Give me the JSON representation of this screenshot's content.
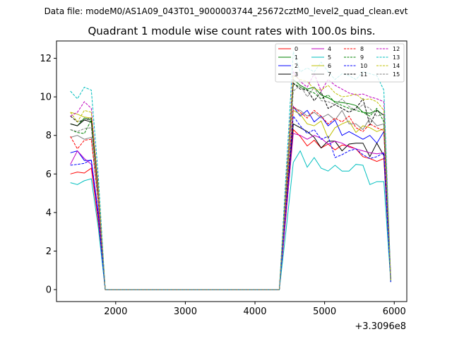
{
  "chart_data": {
    "type": "line",
    "suptitle": "Data file: modeM0/AS1A09_043T01_9000003744_25672cztM0_level2_quad_clean.evt",
    "title": "Quadrant 1 module wise count rates with 100.0s bins.",
    "xlabel": "",
    "ylabel": "",
    "x_offset_label": "+3.3096e8",
    "xlim": [
      1150,
      6180
    ],
    "ylim": [
      -0.62,
      12.9
    ],
    "xticks": [
      2000,
      3000,
      4000,
      5000,
      6000
    ],
    "xtick_labels": [
      "2000",
      "3000",
      "4000",
      "5000",
      "6000"
    ],
    "yticks": [
      0,
      2,
      4,
      6,
      8,
      10,
      12
    ],
    "ytick_labels": [
      "0",
      "2",
      "4",
      "6",
      "8",
      "10",
      "12"
    ],
    "legend_location": "top-right",
    "x": [
      1350,
      1450,
      1550,
      1650,
      1750,
      1850,
      1950,
      2050,
      2150,
      2250,
      2350,
      2450,
      2550,
      2650,
      2750,
      2850,
      2950,
      3050,
      3150,
      3250,
      3350,
      3450,
      3550,
      3650,
      3750,
      3850,
      3950,
      4050,
      4150,
      4250,
      4350,
      4450,
      4550,
      4650,
      4750,
      4850,
      4950,
      5050,
      5150,
      5250,
      5350,
      5450,
      5550,
      5650,
      5750,
      5850,
      5950
    ],
    "series": [
      {
        "name": "0",
        "color": "#ff0000",
        "dash": "solid",
        "values": [
          6.0,
          6.1,
          6.05,
          6.3,
          3.5,
          0.0,
          0.0,
          0.0,
          0.0,
          0.0,
          0.0,
          0.0,
          0.0,
          0.0,
          0.0,
          0.0,
          0.0,
          0.0,
          0.0,
          0.0,
          0.0,
          0.0,
          0.0,
          0.0,
          0.0,
          0.0,
          0.0,
          0.0,
          0.0,
          0.0,
          0.0,
          4.0,
          8.3,
          7.95,
          7.45,
          7.75,
          7.35,
          7.55,
          7.25,
          7.5,
          7.45,
          7.3,
          6.9,
          6.8,
          6.65,
          6.8,
          0.5
        ]
      },
      {
        "name": "1",
        "color": "#008000",
        "dash": "solid",
        "values": [
          8.6,
          8.5,
          8.9,
          8.8,
          5.0,
          0.0,
          0.0,
          0.0,
          0.0,
          0.0,
          0.0,
          0.0,
          0.0,
          0.0,
          0.0,
          0.0,
          0.0,
          0.0,
          0.0,
          0.0,
          0.0,
          0.0,
          0.0,
          0.0,
          0.0,
          0.0,
          0.0,
          0.0,
          0.0,
          0.0,
          0.0,
          5.2,
          10.9,
          10.6,
          10.4,
          10.5,
          10.1,
          9.95,
          9.75,
          9.7,
          9.65,
          9.55,
          9.2,
          9.15,
          9.3,
          9.05,
          0.5
        ]
      },
      {
        "name": "2",
        "color": "#0000ff",
        "dash": "solid",
        "values": [
          7.1,
          7.2,
          6.7,
          6.7,
          4.0,
          0.0,
          0.0,
          0.0,
          0.0,
          0.0,
          0.0,
          0.0,
          0.0,
          0.0,
          0.0,
          0.0,
          0.0,
          0.0,
          0.0,
          0.0,
          0.0,
          0.0,
          0.0,
          0.0,
          0.0,
          0.0,
          0.0,
          0.0,
          0.0,
          0.0,
          0.0,
          4.5,
          9.5,
          9.0,
          9.3,
          8.7,
          9.0,
          8.5,
          8.8,
          8.0,
          8.2,
          8.0,
          7.8,
          8.0,
          7.6,
          8.2,
          0.5
        ]
      },
      {
        "name": "3",
        "color": "#000000",
        "dash": "solid",
        "values": [
          8.6,
          8.5,
          8.8,
          8.7,
          5.0,
          0.0,
          0.0,
          0.0,
          0.0,
          0.0,
          0.0,
          0.0,
          0.0,
          0.0,
          0.0,
          0.0,
          0.0,
          0.0,
          0.0,
          0.0,
          0.0,
          0.0,
          0.0,
          0.0,
          0.0,
          0.0,
          0.0,
          0.0,
          0.0,
          0.0,
          0.0,
          4.3,
          8.6,
          8.4,
          8.2,
          7.9,
          7.35,
          7.7,
          7.7,
          7.2,
          7.55,
          7.6,
          7.6,
          6.9,
          7.6,
          6.95,
          0.4
        ]
      },
      {
        "name": "4",
        "color": "#bf00bf",
        "dash": "solid",
        "values": [
          6.5,
          7.2,
          6.8,
          6.5,
          3.8,
          0.0,
          0.0,
          0.0,
          0.0,
          0.0,
          0.0,
          0.0,
          0.0,
          0.0,
          0.0,
          0.0,
          0.0,
          0.0,
          0.0,
          0.0,
          0.0,
          0.0,
          0.0,
          0.0,
          0.0,
          0.0,
          0.0,
          0.0,
          0.0,
          0.0,
          0.0,
          4.1,
          8.1,
          8.0,
          7.8,
          8.0,
          7.85,
          7.55,
          7.7,
          7.6,
          7.4,
          7.3,
          7.2,
          7.1,
          7.05,
          7.1,
          0.4
        ]
      },
      {
        "name": "5",
        "color": "#00bfbf",
        "dash": "solid",
        "values": [
          5.55,
          5.45,
          5.65,
          5.75,
          3.2,
          0.0,
          0.0,
          0.0,
          0.0,
          0.0,
          0.0,
          0.0,
          0.0,
          0.0,
          0.0,
          0.0,
          0.0,
          0.0,
          0.0,
          0.0,
          0.0,
          0.0,
          0.0,
          0.0,
          0.0,
          0.0,
          0.0,
          0.0,
          0.0,
          0.0,
          0.0,
          3.2,
          6.6,
          7.2,
          6.35,
          6.85,
          6.3,
          6.15,
          6.45,
          6.15,
          6.15,
          6.5,
          6.45,
          5.45,
          5.6,
          5.6,
          0.4
        ]
      },
      {
        "name": "6",
        "color": "#bfbf00",
        "dash": "solid",
        "values": [
          9.2,
          9.1,
          8.95,
          8.9,
          5.1,
          0.0,
          0.0,
          0.0,
          0.0,
          0.0,
          0.0,
          0.0,
          0.0,
          0.0,
          0.0,
          0.0,
          0.0,
          0.0,
          0.0,
          0.0,
          0.0,
          0.0,
          0.0,
          0.0,
          0.0,
          0.0,
          0.0,
          0.0,
          0.0,
          0.0,
          0.0,
          4.6,
          9.3,
          9.1,
          8.6,
          8.5,
          8.75,
          7.85,
          8.4,
          8.6,
          8.75,
          8.15,
          8.5,
          8.4,
          8.2,
          8.35,
          0.5
        ]
      },
      {
        "name": "7",
        "color": "#808080",
        "dash": "solid",
        "values": [
          7.9,
          8.0,
          7.8,
          7.9,
          4.6,
          0.0,
          0.0,
          0.0,
          0.0,
          0.0,
          0.0,
          0.0,
          0.0,
          0.0,
          0.0,
          0.0,
          0.0,
          0.0,
          0.0,
          0.0,
          0.0,
          0.0,
          0.0,
          0.0,
          0.0,
          0.0,
          0.0,
          0.0,
          0.0,
          0.0,
          0.0,
          4.7,
          9.4,
          9.3,
          9.0,
          9.2,
          8.9,
          9.1,
          8.8,
          9.3,
          8.6,
          8.6,
          8.3,
          8.9,
          8.5,
          8.6,
          0.5
        ]
      },
      {
        "name": "8",
        "color": "#ff0000",
        "dash": "dashed",
        "values": [
          7.95,
          7.3,
          7.75,
          7.8,
          4.5,
          0.0,
          0.0,
          0.0,
          0.0,
          0.0,
          0.0,
          0.0,
          0.0,
          0.0,
          0.0,
          0.0,
          0.0,
          0.0,
          0.0,
          0.0,
          0.0,
          0.0,
          0.0,
          0.0,
          0.0,
          0.0,
          0.0,
          0.0,
          0.0,
          0.0,
          0.0,
          4.8,
          9.5,
          9.2,
          8.9,
          9.3,
          9.0,
          8.6,
          8.9,
          8.7,
          9.0,
          8.4,
          8.2,
          8.6,
          8.4,
          8.25,
          0.5
        ]
      },
      {
        "name": "9",
        "color": "#008000",
        "dash": "dashed",
        "values": [
          8.3,
          8.15,
          8.1,
          8.8,
          5.0,
          0.0,
          0.0,
          0.0,
          0.0,
          0.0,
          0.0,
          0.0,
          0.0,
          0.0,
          0.0,
          0.0,
          0.0,
          0.0,
          0.0,
          0.0,
          0.0,
          0.0,
          0.0,
          0.0,
          0.0,
          0.0,
          0.0,
          0.0,
          0.0,
          0.0,
          0.0,
          5.5,
          10.7,
          10.5,
          10.35,
          10.2,
          9.9,
          10.1,
          9.7,
          9.55,
          9.4,
          9.3,
          9.2,
          9.0,
          9.4,
          8.7,
          0.5
        ]
      },
      {
        "name": "10",
        "color": "#0000ff",
        "dash": "dashed",
        "values": [
          6.45,
          6.5,
          6.55,
          6.75,
          3.8,
          0.0,
          0.0,
          0.0,
          0.0,
          0.0,
          0.0,
          0.0,
          0.0,
          0.0,
          0.0,
          0.0,
          0.0,
          0.0,
          0.0,
          0.0,
          0.0,
          0.0,
          0.0,
          0.0,
          0.0,
          0.0,
          0.0,
          0.0,
          0.0,
          0.0,
          0.0,
          4.4,
          9.0,
          8.5,
          8.1,
          8.3,
          7.8,
          7.95,
          6.85,
          7.0,
          7.2,
          7.3,
          7.0,
          6.8,
          6.9,
          7.1,
          0.4
        ]
      },
      {
        "name": "11",
        "color": "#000000",
        "dash": "dashed",
        "values": [
          9.0,
          8.7,
          8.8,
          8.9,
          5.1,
          0.0,
          0.0,
          0.0,
          0.0,
          0.0,
          0.0,
          0.0,
          0.0,
          0.0,
          0.0,
          0.0,
          0.0,
          0.0,
          0.0,
          0.0,
          0.0,
          0.0,
          0.0,
          0.0,
          0.0,
          0.0,
          0.0,
          0.0,
          0.0,
          0.0,
          0.0,
          5.4,
          10.7,
          10.4,
          10.35,
          9.8,
          10.25,
          9.4,
          9.6,
          9.4,
          9.2,
          9.4,
          9.9,
          8.55,
          9.3,
          9.05,
          0.5
        ]
      },
      {
        "name": "12",
        "color": "#bf00bf",
        "dash": "dashed",
        "values": [
          9.0,
          9.2,
          9.75,
          9.4,
          5.4,
          0.0,
          0.0,
          0.0,
          0.0,
          0.0,
          0.0,
          0.0,
          0.0,
          0.0,
          0.0,
          0.0,
          0.0,
          0.0,
          0.0,
          0.0,
          0.0,
          0.0,
          0.0,
          0.0,
          0.0,
          0.0,
          0.0,
          0.0,
          0.0,
          0.0,
          0.0,
          5.7,
          11.3,
          10.8,
          10.5,
          11.2,
          10.3,
          10.9,
          10.6,
          10.4,
          10.2,
          10.1,
          10.15,
          10.0,
          9.9,
          9.75,
          0.6
        ]
      },
      {
        "name": "13",
        "color": "#00bfbf",
        "dash": "dashed",
        "values": [
          10.3,
          9.9,
          10.5,
          10.35,
          5.9,
          0.0,
          0.0,
          0.0,
          0.0,
          0.0,
          0.0,
          0.0,
          0.0,
          0.0,
          0.0,
          0.0,
          0.0,
          0.0,
          0.0,
          0.0,
          0.0,
          0.0,
          0.0,
          0.0,
          0.0,
          0.0,
          0.0,
          0.0,
          0.0,
          0.0,
          0.0,
          6.3,
          12.35,
          11.3,
          11.5,
          11.3,
          11.8,
          11.3,
          10.9,
          11.2,
          11.1,
          10.9,
          11.3,
          11.2,
          11.1,
          10.35,
          0.6
        ]
      },
      {
        "name": "14",
        "color": "#bfbf00",
        "dash": "dashed",
        "values": [
          9.2,
          8.7,
          9.3,
          9.2,
          5.3,
          0.0,
          0.0,
          0.0,
          0.0,
          0.0,
          0.0,
          0.0,
          0.0,
          0.0,
          0.0,
          0.0,
          0.0,
          0.0,
          0.0,
          0.0,
          0.0,
          0.0,
          0.0,
          0.0,
          0.0,
          0.0,
          0.0,
          0.0,
          0.0,
          0.0,
          0.0,
          5.6,
          11.1,
          10.9,
          10.8,
          10.4,
          10.35,
          10.6,
          10.2,
          10.0,
          10.05,
          10.15,
          9.85,
          9.9,
          9.75,
          9.3,
          0.5
        ]
      },
      {
        "name": "15",
        "color": "#808080",
        "dash": "dashed",
        "values": [
          8.3,
          8.2,
          8.35,
          8.4,
          4.8,
          0.0,
          0.0,
          0.0,
          0.0,
          0.0,
          0.0,
          0.0,
          0.0,
          0.0,
          0.0,
          0.0,
          0.0,
          0.0,
          0.0,
          0.0,
          0.0,
          0.0,
          0.0,
          0.0,
          0.0,
          0.0,
          0.0,
          0.0,
          0.0,
          0.0,
          0.0,
          5.2,
          10.3,
          10.6,
          10.0,
          10.5,
          9.8,
          9.75,
          9.6,
          9.9,
          9.5,
          9.3,
          9.6,
          9.4,
          9.0,
          9.1,
          0.5
        ]
      }
    ]
  }
}
